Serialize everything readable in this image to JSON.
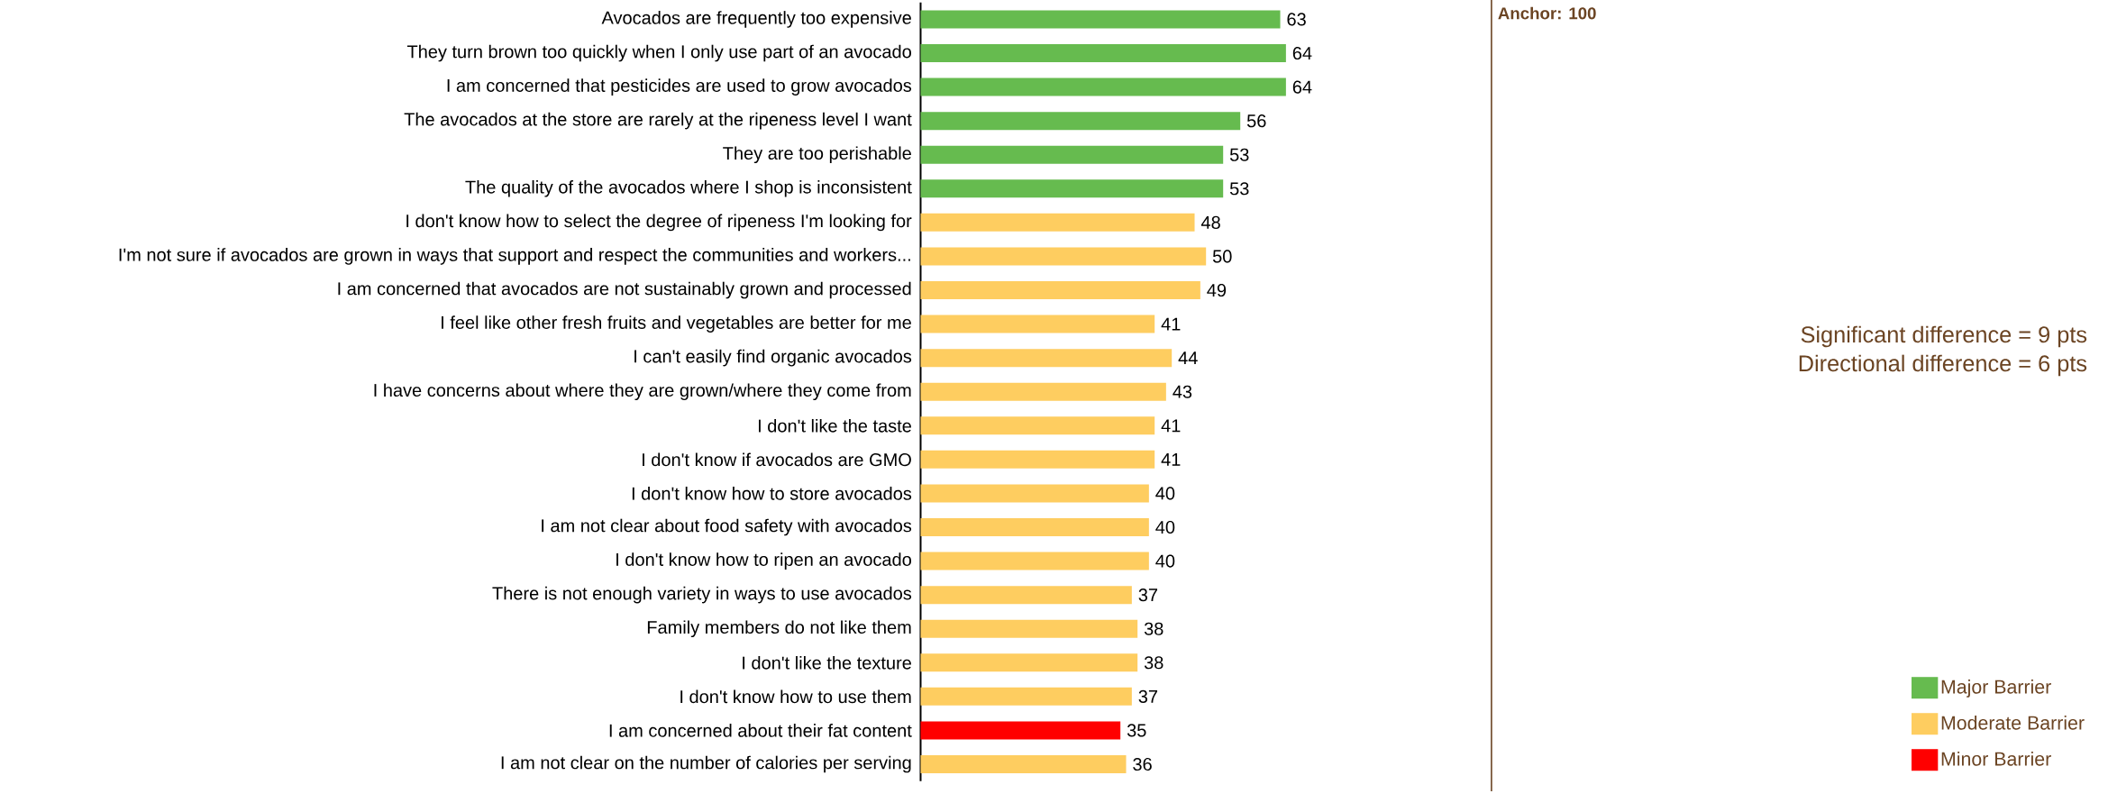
{
  "chart_data": {
    "type": "bar",
    "orientation": "horizontal",
    "data_labels": true,
    "legend": "bottom right",
    "xlim": [
      0,
      100
    ],
    "categories": [
      "Avocados are frequently too expensive",
      "They turn brown too quickly when I only use part of an avocado",
      "I am concerned that pesticides are used to grow avocados",
      "The avocados at the store are rarely at the ripeness level I want",
      "They are too perishable",
      "The quality of the avocados where I shop is inconsistent",
      "I don't know how to select the degree of ripeness I'm looking for",
      "I'm not sure if avocados are grown in ways that support and respect the communities and workers...",
      "I am concerned that avocados are not sustainably grown and processed",
      "I feel like other fresh fruits and vegetables are better for me",
      "I can't easily find organic avocados",
      "I have concerns about where they are grown/where they come from",
      "I don't like the taste",
      "I don't know if avocados are GMO",
      "I don't know how to store avocados",
      "I am not clear about food safety with avocados",
      "I don't know how to ripen an avocado",
      "There is not enough variety in ways to use avocados",
      "Family members do not like them",
      "I don't like the texture",
      "I don't know how to use them",
      "I am concerned about their fat content",
      "I am not clear on the number of calories per serving"
    ],
    "series": [
      {
        "name": "Major Barrier",
        "color": "#66bb4f",
        "values": [
          63,
          64,
          64,
          56,
          53,
          53,
          null,
          null,
          null,
          null,
          null,
          null,
          null,
          null,
          null,
          null,
          null,
          null,
          null,
          null,
          null,
          null,
          null
        ]
      },
      {
        "name": "Moderate Barrier",
        "color": "#fecd60",
        "values": [
          null,
          null,
          null,
          null,
          null,
          null,
          48,
          50,
          49,
          41,
          44,
          43,
          41,
          41,
          40,
          40,
          40,
          37,
          38,
          38,
          37,
          null,
          36
        ]
      },
      {
        "name": "Minor Barrier",
        "color": "#ff0000",
        "values": [
          null,
          null,
          null,
          null,
          null,
          null,
          null,
          null,
          null,
          null,
          null,
          null,
          null,
          null,
          null,
          null,
          null,
          null,
          null,
          null,
          null,
          35,
          null
        ]
      }
    ],
    "ref_lines": [
      {
        "axis": "x",
        "value": 100,
        "label": "Anchor: 100",
        "color": "#6b4423"
      }
    ],
    "annotations": [
      "Significant difference = 9 pts",
      "Directional difference = 6 pts"
    ]
  }
}
